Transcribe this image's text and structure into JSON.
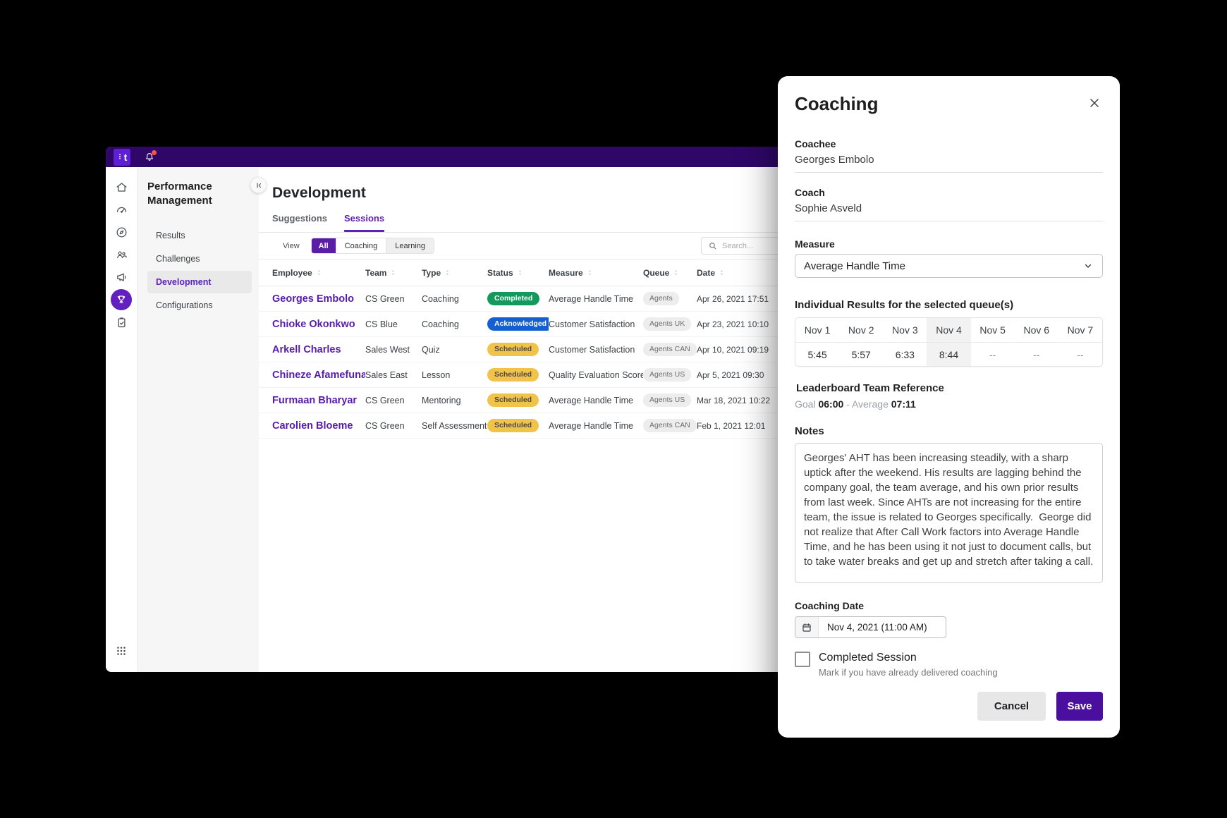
{
  "colors": {
    "topbar": "#2f0769",
    "logo": "#5e1fd6",
    "alert": "#ff5438",
    "accent": "#5e22b8",
    "name": "#571cac",
    "seg-selected": "#5a1da6",
    "trophy": "#6320c0",
    "save": "#4a0f9e",
    "st-completed": "#12995b",
    "st-acknowledged": "#155fd0",
    "st-scheduled": "#f2c34a"
  },
  "topbar": {
    "logo_text": "t",
    "icons": [
      "notifications-bell-icon"
    ]
  },
  "sidebar": {
    "title": "Performance Management",
    "rail_icons": [
      {
        "name": "home-icon"
      },
      {
        "name": "dashboard-gauge-icon"
      },
      {
        "name": "explore-compass-icon"
      },
      {
        "name": "teams-people-icon"
      },
      {
        "name": "announcements-megaphone-icon"
      },
      {
        "name": "performance-trophy-icon",
        "active": true
      },
      {
        "name": "tasks-clipboard-icon"
      }
    ],
    "bottom_icon": "app-grid-icon",
    "items": [
      {
        "label": "Results"
      },
      {
        "label": "Challenges"
      },
      {
        "label": "Development",
        "active": true
      },
      {
        "label": "Configurations"
      }
    ]
  },
  "main": {
    "title": "Development",
    "tabs": [
      {
        "label": "Suggestions"
      },
      {
        "label": "Sessions",
        "active": true
      }
    ],
    "filter": {
      "view_label": "View",
      "options": [
        {
          "label": "All",
          "selected": true
        },
        {
          "label": "Coaching"
        },
        {
          "label": "Learning"
        }
      ]
    },
    "search": {
      "placeholder": "Search..."
    },
    "table": {
      "columns": [
        "Employee",
        "Team",
        "Type",
        "Status",
        "Measure",
        "Queue",
        "Date"
      ],
      "rows": [
        {
          "employee": "Georges Embolo",
          "team": "CS Green",
          "type": "Coaching",
          "status": "Completed",
          "measure": "Average Handle Time",
          "queue": "Agents",
          "date": "Apr 26, 2021 17:51"
        },
        {
          "employee": "Chioke Okonkwo",
          "team": "CS Blue",
          "type": "Coaching",
          "status": "Acknowledged",
          "measure": "Customer Satisfaction",
          "queue": "Agents UK",
          "date": "Apr 23, 2021 10:10"
        },
        {
          "employee": "Arkell Charles",
          "team": "Sales West",
          "type": "Quiz",
          "status": "Scheduled",
          "measure": "Customer Satisfaction",
          "queue": "Agents CAN",
          "date": "Apr 10, 2021 09:19"
        },
        {
          "employee": "Chineze Afamefuna",
          "team": "Sales East",
          "type": "Lesson",
          "status": "Scheduled",
          "measure": "Quality Evaluation Score",
          "queue": "Agents US",
          "date": "Apr 5, 2021 09:30"
        },
        {
          "employee": "Furmaan Bharyar",
          "team": "CS Green",
          "type": "Mentoring",
          "status": "Scheduled",
          "measure": "Average Handle Time",
          "queue": "Agents US",
          "date": "Mar 18, 2021 10:22"
        },
        {
          "employee": "Carolien Bloeme",
          "team": "CS Green",
          "type": "Self Assessment",
          "status": "Scheduled",
          "measure": "Average Handle Time",
          "queue": "Agents CAN",
          "date": "Feb 1, 2021 12:01"
        }
      ]
    }
  },
  "modal": {
    "title": "Coaching",
    "coachee": {
      "label": "Coachee",
      "value": "Georges Embolo"
    },
    "coach": {
      "label": "Coach",
      "value": "Sophie Asveld"
    },
    "measure": {
      "label": "Measure",
      "value": "Average Handle Time"
    },
    "results": {
      "label": "Individual Results for the selected queue(s)",
      "columns": [
        "Nov 1",
        "Nov 2",
        "Nov 3",
        "Nov 4",
        "Nov 5",
        "Nov 6",
        "Nov 7"
      ],
      "values": [
        "5:45",
        "5:57",
        "6:33",
        "8:44",
        "--",
        "--",
        "--"
      ],
      "highlight_index": 3
    },
    "leaderboard": {
      "label": "Leaderboard Team Reference",
      "goal_label": "Goal",
      "goal_value": "06:00",
      "separator": "-",
      "average_label": "Average",
      "average_value": "07:11"
    },
    "notes": {
      "label": "Notes",
      "value": "Georges' AHT has been increasing steadily, with a sharp uptick after the weekend. His results are lagging behind the company goal, the team average, and his own prior results from last week. Since AHTs are not increasing for the entire team, the issue is related to Georges specifically.  George did not realize that After Call Work factors into Average Handle Time, and he has been using it not just to document calls, but to take water breaks and get up and stretch after taking a call."
    },
    "coaching_date": {
      "label": "Coaching Date",
      "value": "Nov 4, 2021 (11:00 AM)"
    },
    "completed_session": {
      "label": "Completed Session",
      "hint": "Mark if you have already delivered coaching",
      "checked": false
    },
    "buttons": {
      "cancel": "Cancel",
      "save": "Save"
    }
  }
}
